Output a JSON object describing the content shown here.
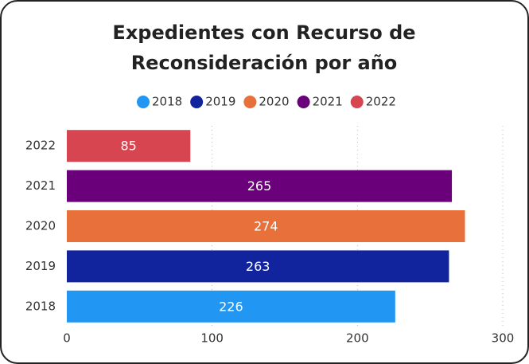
{
  "chart_data": {
    "type": "bar",
    "orientation": "horizontal",
    "title": "Expedientes con Recurso de Reconsideración por año",
    "categories": [
      "2018",
      "2019",
      "2020",
      "2021",
      "2022"
    ],
    "values": [
      226,
      263,
      274,
      265,
      85
    ],
    "colors": [
      "#2196f3",
      "#12239e",
      "#e8703a",
      "#6b007b",
      "#d64550"
    ],
    "xlim": [
      0,
      300
    ],
    "xticks": [
      0,
      100,
      200,
      300
    ],
    "grid": true,
    "legend": "top",
    "data_labels": true
  }
}
